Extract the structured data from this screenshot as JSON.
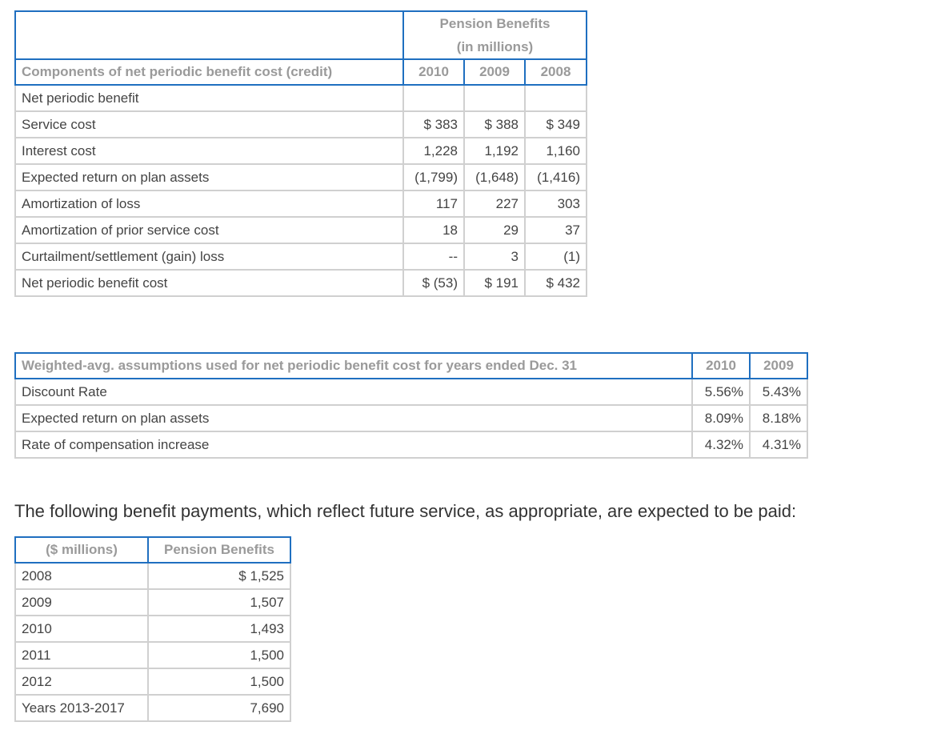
{
  "table1": {
    "group_header": [
      "Pension Benefits",
      "(in millions)"
    ],
    "label_header": "Components of net periodic benefit cost (credit)",
    "years": [
      "2010",
      "2009",
      "2008"
    ],
    "rows": [
      {
        "label": "Net periodic benefit",
        "values": [
          "",
          "",
          ""
        ]
      },
      {
        "label": "Service cost",
        "values": [
          "$ 383",
          "$ 388",
          "$ 349"
        ]
      },
      {
        "label": "Interest cost",
        "values": [
          "1,228",
          "1,192",
          "1,160"
        ]
      },
      {
        "label": "Expected return on plan assets",
        "values": [
          "(1,799)",
          "(1,648)",
          "(1,416)"
        ]
      },
      {
        "label": "Amortization of loss",
        "values": [
          "117",
          "227",
          "303"
        ]
      },
      {
        "label": "Amortization of prior service cost",
        "values": [
          "18",
          "29",
          "37"
        ]
      },
      {
        "label": "Curtailment/settlement (gain) loss",
        "values": [
          "--",
          "3",
          "(1)"
        ]
      },
      {
        "label": "Net periodic benefit cost",
        "values": [
          "$ (53)",
          "$ 191",
          "$ 432"
        ]
      }
    ]
  },
  "table2": {
    "label_header": "Weighted-avg. assumptions used for net periodic benefit cost for years ended Dec. 31",
    "years": [
      "2010",
      "2009"
    ],
    "rows": [
      {
        "label": "Discount Rate",
        "values": [
          "5.56%",
          "5.43%"
        ]
      },
      {
        "label": "Expected return on plan assets",
        "values": [
          "8.09%",
          "8.18%"
        ]
      },
      {
        "label": "Rate of compensation increase",
        "values": [
          "4.32%",
          "4.31%"
        ]
      }
    ]
  },
  "paragraph": "The following benefit payments, which reflect future service, as appropriate, are expected to be paid:",
  "table3": {
    "headers": [
      "($ millions)",
      "Pension Benefits"
    ],
    "rows": [
      {
        "label": "2008",
        "value": "$ 1,525"
      },
      {
        "label": "2009",
        "value": "1,507"
      },
      {
        "label": "2010",
        "value": "1,493"
      },
      {
        "label": "2011",
        "value": "1,500"
      },
      {
        "label": "2012",
        "value": "1,500"
      },
      {
        "label": "Years 2013-2017",
        "value": "7,690"
      }
    ]
  }
}
